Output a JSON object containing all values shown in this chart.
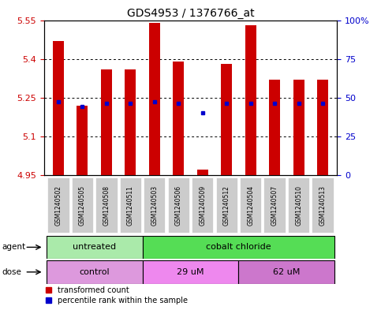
{
  "title": "GDS4953 / 1376766_at",
  "samples": [
    "GSM1240502",
    "GSM1240505",
    "GSM1240508",
    "GSM1240511",
    "GSM1240503",
    "GSM1240506",
    "GSM1240509",
    "GSM1240512",
    "GSM1240504",
    "GSM1240507",
    "GSM1240510",
    "GSM1240513"
  ],
  "red_values": [
    5.47,
    5.22,
    5.36,
    5.36,
    5.54,
    5.39,
    4.97,
    5.38,
    5.53,
    5.32,
    5.32,
    5.32
  ],
  "blue_values": [
    5.235,
    5.215,
    5.228,
    5.228,
    5.235,
    5.228,
    5.19,
    5.228,
    5.228,
    5.228,
    5.228,
    5.228
  ],
  "blue_detached": [
    false,
    false,
    false,
    false,
    false,
    false,
    true,
    false,
    false,
    false,
    false,
    false
  ],
  "ylim_min": 4.95,
  "ylim_max": 5.55,
  "yticks_left": [
    4.95,
    5.1,
    5.25,
    5.4,
    5.55
  ],
  "yticks_left_labels": [
    "4.95",
    "5.1",
    "5.25",
    "5.4",
    "5.55"
  ],
  "yticks_right": [
    0,
    25,
    50,
    75,
    100
  ],
  "yticks_right_labels": [
    "0",
    "25",
    "50",
    "75",
    "100%"
  ],
  "bar_bottom": 4.95,
  "bar_color": "#cc0000",
  "blue_color": "#0000cc",
  "agent_labels": [
    "untreated",
    "cobalt chloride"
  ],
  "agent_color_untreated": "#aaeaaa",
  "agent_color_cobalt": "#55dd55",
  "dose_labels": [
    "control",
    "29 uM",
    "62 uM"
  ],
  "dose_color_control": "#dd99dd",
  "dose_color_29": "#ee88ee",
  "dose_color_62": "#cc77cc",
  "legend_red": "transformed count",
  "legend_blue": "percentile rank within the sample",
  "label_color_red": "#cc0000",
  "label_color_blue": "#0000cc",
  "sample_box_color": "#cccccc"
}
